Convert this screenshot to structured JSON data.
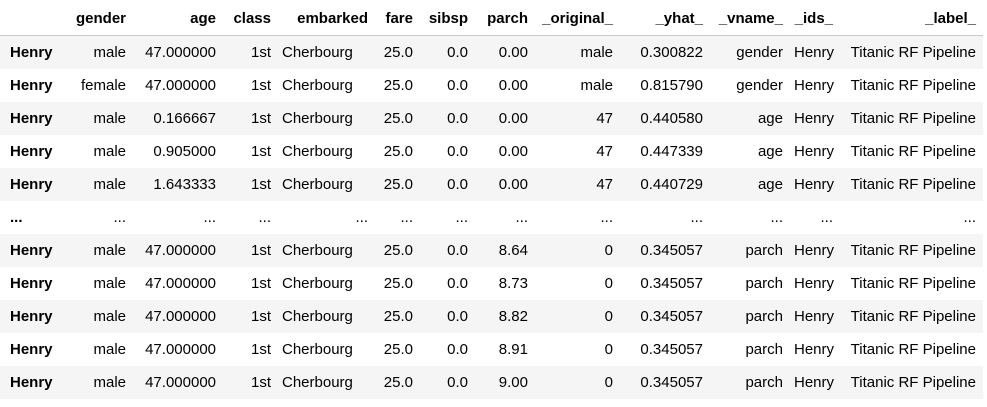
{
  "table": {
    "columns": [
      "",
      "gender",
      "age",
      "class",
      "embarked",
      "fare",
      "sibsp",
      "parch",
      "_original_",
      "_yhat_",
      "_vname_",
      "_ids_",
      "_label_"
    ],
    "rows": [
      {
        "index": "Henry",
        "cells": [
          "male",
          "47.000000",
          "1st",
          "Cherbourg",
          "25.0",
          "0.0",
          "0.00",
          "male",
          "0.300822",
          "gender",
          "Henry",
          "Titanic RF Pipeline"
        ]
      },
      {
        "index": "Henry",
        "cells": [
          "female",
          "47.000000",
          "1st",
          "Cherbourg",
          "25.0",
          "0.0",
          "0.00",
          "male",
          "0.815790",
          "gender",
          "Henry",
          "Titanic RF Pipeline"
        ]
      },
      {
        "index": "Henry",
        "cells": [
          "male",
          "0.166667",
          "1st",
          "Cherbourg",
          "25.0",
          "0.0",
          "0.00",
          "47",
          "0.440580",
          "age",
          "Henry",
          "Titanic RF Pipeline"
        ]
      },
      {
        "index": "Henry",
        "cells": [
          "male",
          "0.905000",
          "1st",
          "Cherbourg",
          "25.0",
          "0.0",
          "0.00",
          "47",
          "0.447339",
          "age",
          "Henry",
          "Titanic RF Pipeline"
        ]
      },
      {
        "index": "Henry",
        "cells": [
          "male",
          "1.643333",
          "1st",
          "Cherbourg",
          "25.0",
          "0.0",
          "0.00",
          "47",
          "0.440729",
          "age",
          "Henry",
          "Titanic RF Pipeline"
        ]
      },
      {
        "index": "...",
        "cells": [
          "...",
          "...",
          "...",
          "...",
          "...",
          "...",
          "...",
          "...",
          "...",
          "...",
          "...",
          "..."
        ]
      },
      {
        "index": "Henry",
        "cells": [
          "male",
          "47.000000",
          "1st",
          "Cherbourg",
          "25.0",
          "0.0",
          "8.64",
          "0",
          "0.345057",
          "parch",
          "Henry",
          "Titanic RF Pipeline"
        ]
      },
      {
        "index": "Henry",
        "cells": [
          "male",
          "47.000000",
          "1st",
          "Cherbourg",
          "25.0",
          "0.0",
          "8.73",
          "0",
          "0.345057",
          "parch",
          "Henry",
          "Titanic RF Pipeline"
        ]
      },
      {
        "index": "Henry",
        "cells": [
          "male",
          "47.000000",
          "1st",
          "Cherbourg",
          "25.0",
          "0.0",
          "8.82",
          "0",
          "0.345057",
          "parch",
          "Henry",
          "Titanic RF Pipeline"
        ]
      },
      {
        "index": "Henry",
        "cells": [
          "male",
          "47.000000",
          "1st",
          "Cherbourg",
          "25.0",
          "0.0",
          "8.91",
          "0",
          "0.345057",
          "parch",
          "Henry",
          "Titanic RF Pipeline"
        ]
      },
      {
        "index": "Henry",
        "cells": [
          "male",
          "47.000000",
          "1st",
          "Cherbourg",
          "25.0",
          "0.0",
          "9.00",
          "0",
          "0.345057",
          "parch",
          "Henry",
          "Titanic RF Pipeline"
        ]
      }
    ]
  }
}
